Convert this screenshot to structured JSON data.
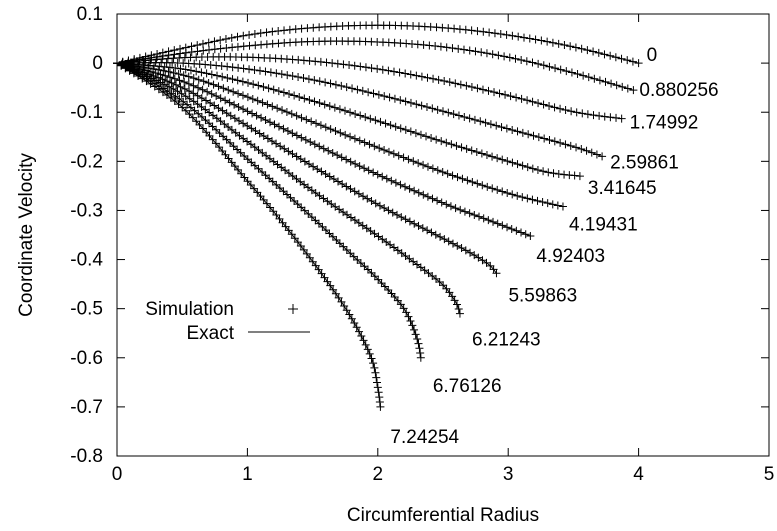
{
  "chart_data": {
    "type": "line",
    "title": "",
    "xlabel": "Circumferential Radius",
    "ylabel": "Coordinate Velocity",
    "xlim": [
      0,
      5
    ],
    "ylim": [
      -0.8,
      0.1
    ],
    "x_ticks": [
      "0",
      "1",
      "2",
      "3",
      "4",
      "5"
    ],
    "y_ticks": [
      "0.1",
      "0",
      "-0.1",
      "-0.2",
      "-0.3",
      "-0.4",
      "-0.5",
      "-0.6",
      "-0.7",
      "-0.8"
    ],
    "grid": false,
    "legend": {
      "placement": "lower-left",
      "entries": [
        {
          "label": "Simulation",
          "marker": "+"
        },
        {
          "label": "Exact",
          "marker": "line"
        }
      ]
    },
    "series": [
      {
        "name": "0",
        "label": "0",
        "x": [
          0.0,
          0.5,
          1.0,
          1.5,
          2.0,
          2.5,
          3.0,
          3.5,
          4.0
        ],
        "y": [
          0.0,
          0.03,
          0.057,
          0.072,
          0.077,
          0.072,
          0.057,
          0.033,
          0.0
        ]
      },
      {
        "name": "0.880256",
        "label": "0.880256",
        "x": [
          0.0,
          0.5,
          1.0,
          1.5,
          2.0,
          2.5,
          3.0,
          3.5,
          3.96
        ],
        "y": [
          0.0,
          0.02,
          0.035,
          0.044,
          0.043,
          0.033,
          0.012,
          -0.02,
          -0.055
        ]
      },
      {
        "name": "1.74992",
        "label": "1.74992",
        "x": [
          0.0,
          0.5,
          1.0,
          1.5,
          2.0,
          2.5,
          3.0,
          3.5,
          3.87
        ],
        "y": [
          0.0,
          0.011,
          0.012,
          0.004,
          -0.012,
          -0.036,
          -0.066,
          -0.099,
          -0.113
        ]
      },
      {
        "name": "2.59861",
        "label": "2.59861",
        "x": [
          0.0,
          0.5,
          1.0,
          1.5,
          2.0,
          2.5,
          3.0,
          3.5,
          3.72
        ],
        "y": [
          0.0,
          0.0,
          -0.012,
          -0.034,
          -0.064,
          -0.098,
          -0.134,
          -0.17,
          -0.19
        ]
      },
      {
        "name": "3.41645",
        "label": "3.41645",
        "x": [
          0.0,
          0.5,
          1.0,
          1.5,
          2.0,
          2.5,
          3.0,
          3.3,
          3.55
        ],
        "y": [
          0.0,
          -0.012,
          -0.04,
          -0.077,
          -0.118,
          -0.16,
          -0.2,
          -0.222,
          -0.23
        ]
      },
      {
        "name": "4.19431",
        "label": "4.19431",
        "x": [
          0.0,
          0.5,
          1.0,
          1.5,
          2.0,
          2.5,
          3.0,
          3.3,
          3.42
        ],
        "y": [
          0.0,
          -0.024,
          -0.069,
          -0.12,
          -0.172,
          -0.222,
          -0.265,
          -0.285,
          -0.292
        ]
      },
      {
        "name": "4.92403",
        "label": "4.92403",
        "x": [
          0.0,
          0.5,
          1.0,
          1.5,
          2.0,
          2.5,
          2.8,
          3.1,
          3.17
        ],
        "y": [
          0.0,
          -0.037,
          -0.098,
          -0.163,
          -0.227,
          -0.285,
          -0.315,
          -0.345,
          -0.352
        ]
      },
      {
        "name": "5.59863",
        "label": "5.59863",
        "x": [
          0.0,
          0.5,
          1.0,
          1.5,
          2.0,
          2.5,
          2.7,
          2.85,
          2.91
        ],
        "y": [
          0.0,
          -0.05,
          -0.128,
          -0.21,
          -0.288,
          -0.357,
          -0.385,
          -0.41,
          -0.428
        ]
      },
      {
        "name": "6.21243",
        "label": "6.21243",
        "x": [
          0.0,
          0.5,
          1.0,
          1.5,
          2.0,
          2.3,
          2.5,
          2.6,
          2.63
        ],
        "y": [
          0.0,
          -0.063,
          -0.16,
          -0.26,
          -0.352,
          -0.41,
          -0.452,
          -0.488,
          -0.51
        ]
      },
      {
        "name": "6.76126",
        "label": "6.76126",
        "x": [
          0.0,
          0.5,
          1.0,
          1.5,
          1.8,
          2.0,
          2.2,
          2.3,
          2.33
        ],
        "y": [
          0.0,
          -0.077,
          -0.195,
          -0.315,
          -0.39,
          -0.44,
          -0.5,
          -0.56,
          -0.6
        ]
      },
      {
        "name": "7.24254",
        "label": "7.24254",
        "x": [
          0.0,
          0.5,
          1.0,
          1.3,
          1.6,
          1.8,
          1.95,
          2.0,
          2.02
        ],
        "y": [
          0.0,
          -0.09,
          -0.24,
          -0.335,
          -0.44,
          -0.52,
          -0.6,
          -0.66,
          -0.7
        ]
      }
    ]
  }
}
